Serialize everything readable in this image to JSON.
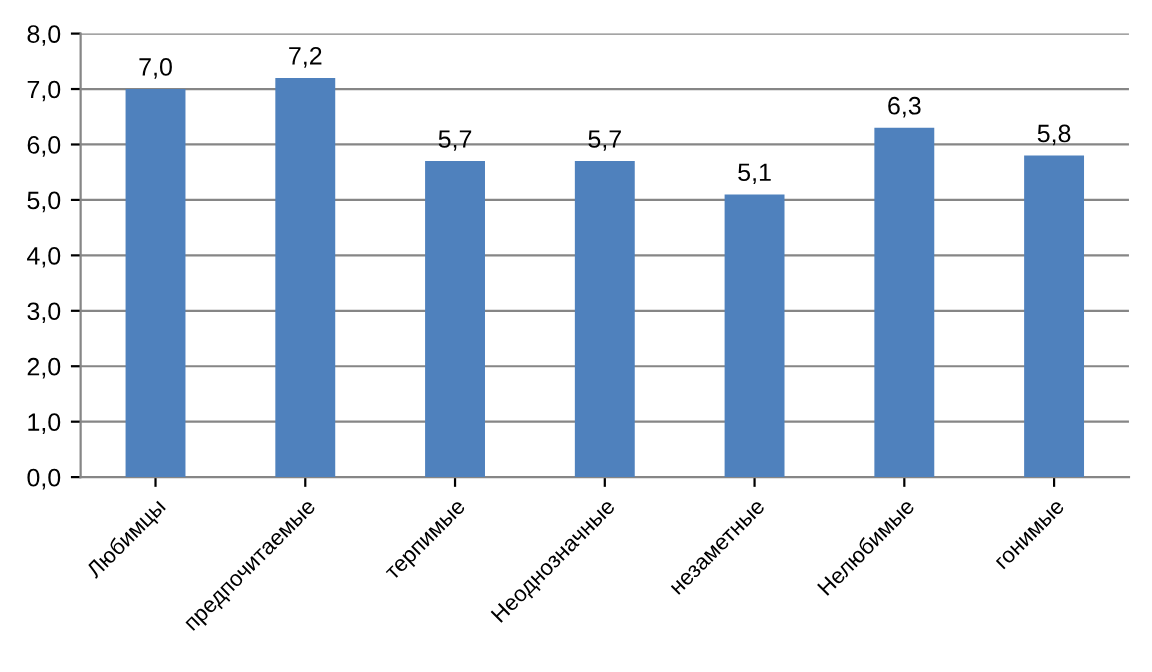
{
  "chart_data": {
    "type": "bar",
    "categories": [
      "Любимцы",
      "предпочитаемые",
      "терпимые",
      "Неоднозначные",
      "незаметные",
      "Нелюбимые",
      "гонимые"
    ],
    "values": [
      7.0,
      7.2,
      5.7,
      5.7,
      5.1,
      6.3,
      5.8
    ],
    "value_labels": [
      "7,0",
      "7,2",
      "5,7",
      "5,7",
      "5,1",
      "6,3",
      "5,8"
    ],
    "color": "#4f81bd",
    "ylim": [
      0,
      8
    ],
    "yticks": [
      {
        "value": 0,
        "label": "0,0"
      },
      {
        "value": 1,
        "label": "1,0"
      },
      {
        "value": 2,
        "label": "2,0"
      },
      {
        "value": 3,
        "label": "3,0"
      },
      {
        "value": 4,
        "label": "4,0"
      },
      {
        "value": 5,
        "label": "5,0"
      },
      {
        "value": 6,
        "label": "6,0"
      },
      {
        "value": 7,
        "label": "7,0"
      },
      {
        "value": 8,
        "label": "8,0"
      }
    ],
    "grid": "y"
  }
}
